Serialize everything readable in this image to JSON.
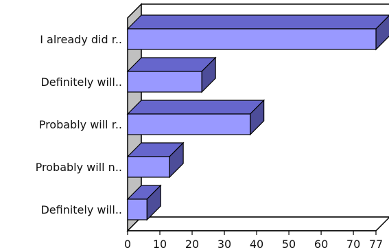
{
  "chart_data": {
    "type": "bar",
    "orientation": "horizontal",
    "style": "3d",
    "categories": [
      "I already did r..",
      "Definitely will..",
      "Probably will r..",
      "Probably will n..",
      "Definitely will.."
    ],
    "values": [
      77,
      23,
      38,
      13,
      6
    ],
    "xlim": [
      0,
      77
    ],
    "xticks": [
      0,
      10,
      20,
      30,
      40,
      50,
      60,
      70,
      77
    ],
    "xlabel": "",
    "ylabel": "",
    "title": "",
    "grid": false,
    "legend": "none",
    "colors": {
      "bar_front": "#9999ff",
      "bar_top": "#6666cc",
      "bar_side": "#4d4d99",
      "outline": "#000000",
      "back_wall": "#ffffff",
      "side_wall": "#c0c0c0",
      "floor": "#ffffff"
    }
  }
}
